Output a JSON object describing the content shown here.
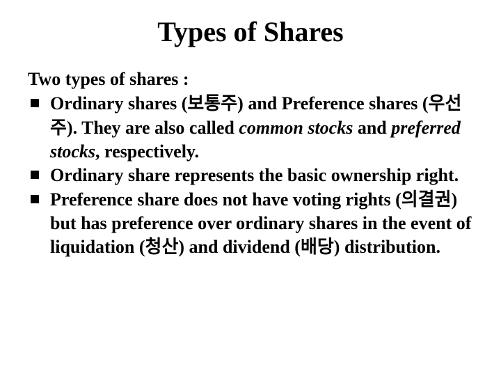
{
  "title": "Types of Shares",
  "intro": "Two types of shares :",
  "bullets": [
    {
      "parts": [
        {
          "text": "Ordinary shares (보통주) and Preference shares (우선주). They are also called ",
          "style": "normal"
        },
        {
          "text": "common stocks",
          "style": "italic"
        },
        {
          "text": " and ",
          "style": "normal"
        },
        {
          "text": "preferred stocks",
          "style": "italic"
        },
        {
          "text": ", respectively.",
          "style": "normal"
        }
      ]
    },
    {
      "parts": [
        {
          "text": "Ordinary share represents the basic ownership right.",
          "style": "normal"
        }
      ]
    },
    {
      "parts": [
        {
          "text": "Preference share does not have voting rights (의결권) but has preference over ordinary shares in the event of liquidation (청산) and dividend (배당) distribution.",
          "style": "normal"
        }
      ]
    }
  ],
  "colors": {
    "background": "#ffffff",
    "text": "#000000",
    "bullet": "#000000"
  },
  "typography": {
    "title_fontsize": 40,
    "body_fontsize": 26,
    "font_family": "Times New Roman",
    "weight": "bold"
  }
}
